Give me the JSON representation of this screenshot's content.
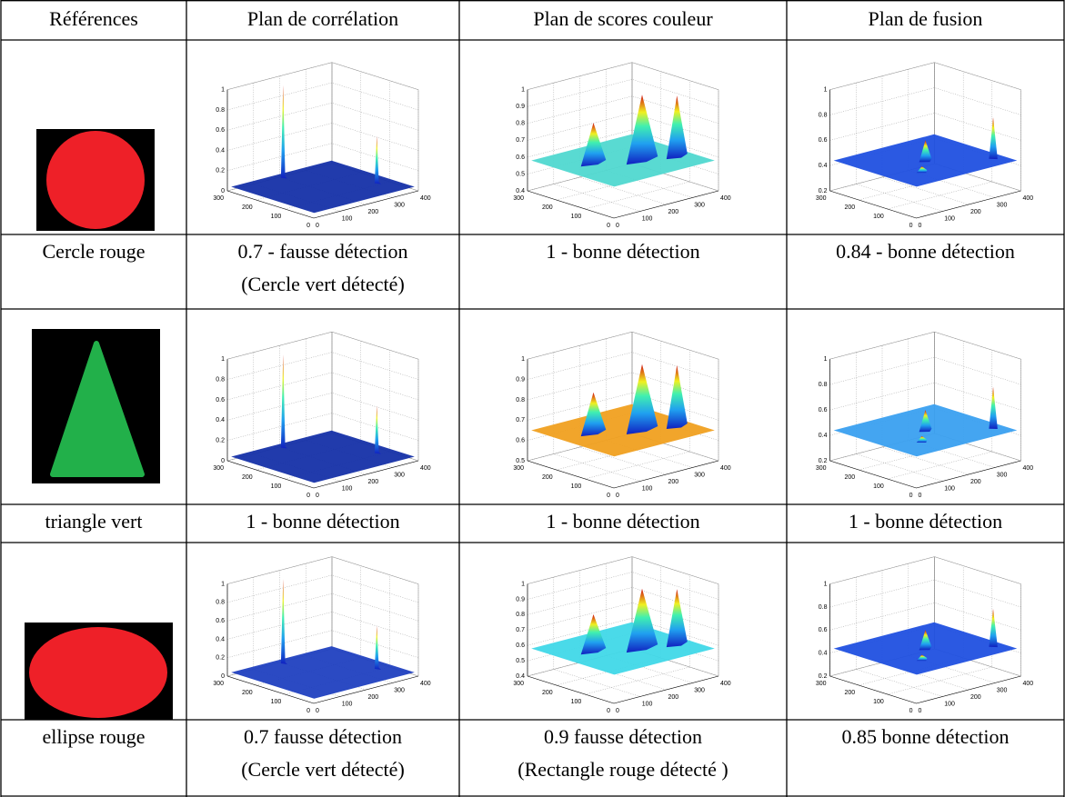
{
  "table": {
    "header": [
      "Références",
      "Plan de corrélation",
      "Plan de scores couleur",
      "Plan de fusion"
    ],
    "rows": [
      {
        "reference": "Cercle rouge",
        "results": [
          [
            "0.7 - fausse détection",
            "(Cercle vert détecté)"
          ],
          [
            "1 - bonne détection"
          ],
          [
            "0.84 - bonne détection"
          ]
        ],
        "plots": [
          {
            "zticks": [
              0,
              0.2,
              0.4,
              0.6,
              0.8,
              1
            ]
          },
          {
            "zticks": [
              0.4,
              0.5,
              0.6,
              0.7,
              0.8,
              0.9,
              1
            ]
          },
          {
            "zticks": [
              0.2,
              0.4,
              0.6,
              0.8,
              1
            ]
          }
        ]
      },
      {
        "reference": "triangle vert",
        "results": [
          [
            "1 - bonne détection"
          ],
          [
            "1 - bonne détection"
          ],
          [
            "1 - bonne détection"
          ]
        ],
        "plots": [
          {
            "zticks": [
              0,
              0.2,
              0.4,
              0.6,
              0.8,
              1
            ]
          },
          {
            "zticks": [
              0.5,
              0.6,
              0.7,
              0.8,
              0.9,
              1
            ]
          },
          {
            "zticks": [
              0.2,
              0.4,
              0.6,
              0.8,
              1
            ]
          }
        ]
      },
      {
        "reference": "ellipse rouge",
        "results": [
          [
            "0.7 fausse détection",
            "(Cercle vert détecté)"
          ],
          [
            "0.9 fausse détection",
            "(Rectangle rouge détecté )"
          ],
          [
            "0.85 bonne détection"
          ]
        ],
        "plots": [
          {
            "zticks": [
              0,
              0.2,
              0.4,
              0.6,
              0.8,
              1
            ]
          },
          {
            "zticks": [
              0.4,
              0.5,
              0.6,
              0.7,
              0.8,
              0.9,
              1
            ]
          },
          {
            "zticks": [
              0.2,
              0.4,
              0.6,
              0.8,
              1
            ]
          }
        ]
      }
    ]
  },
  "plot_axes": {
    "xticks": [
      0,
      100,
      200,
      300,
      400
    ],
    "yticks": [
      0,
      100,
      200,
      300
    ]
  }
}
